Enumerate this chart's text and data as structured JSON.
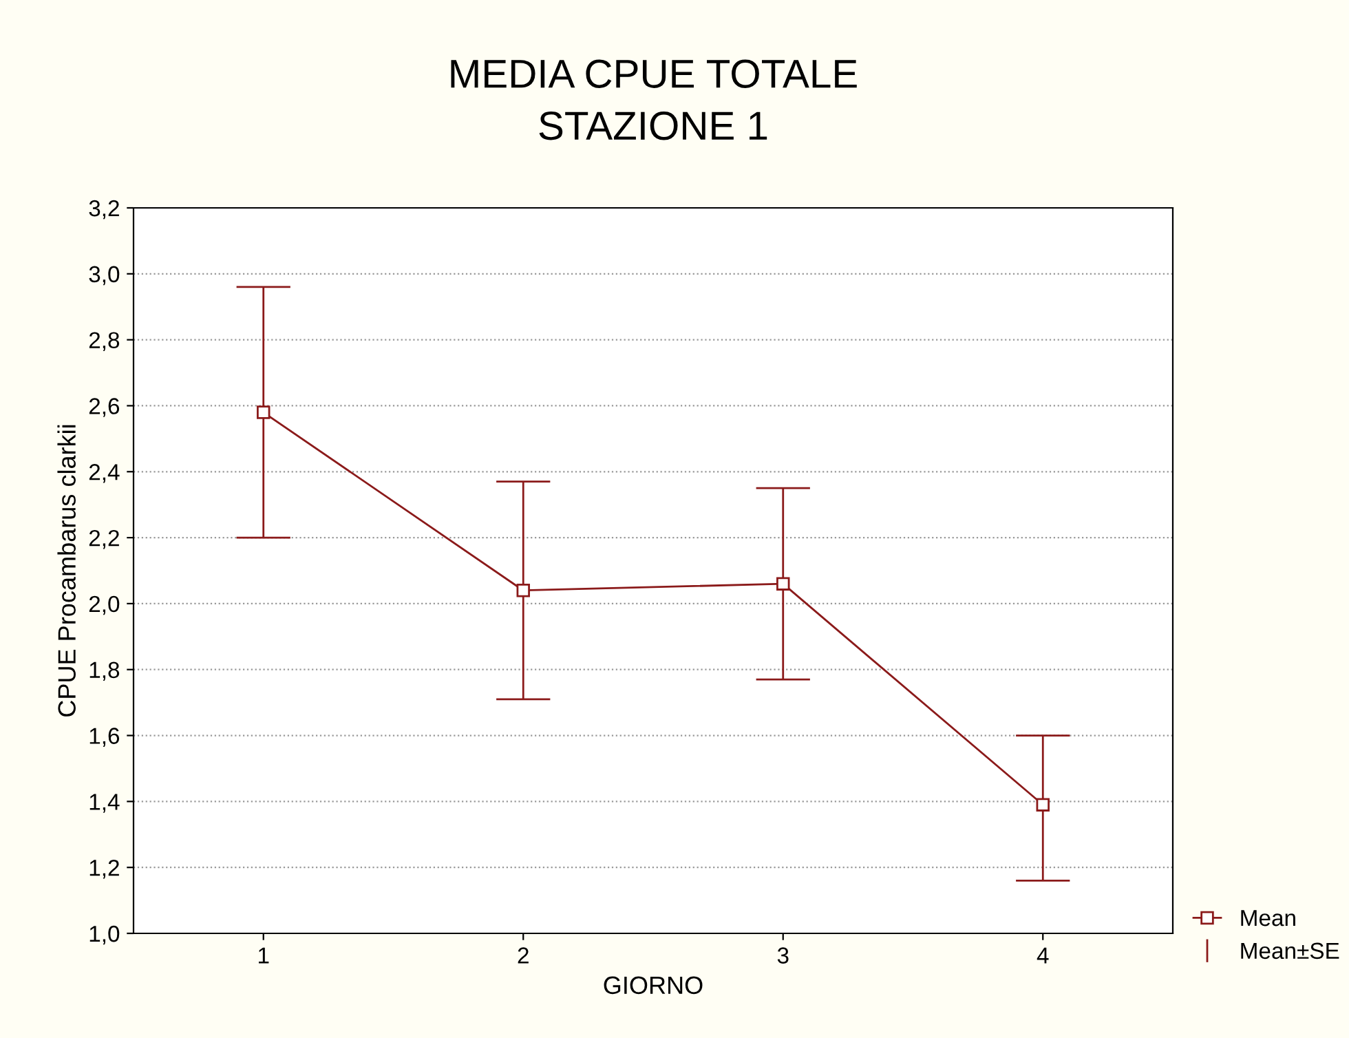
{
  "chart_data": {
    "type": "line",
    "title": "MEDIA CPUE TOTALE\nSTAZIONE 1",
    "xlabel": "GIORNO",
    "ylabel": "CPUE Procambarus clarkii",
    "categories": [
      "1",
      "2",
      "3",
      "4"
    ],
    "series": [
      {
        "name": "Mean",
        "color": "#8b1a1a",
        "values": [
          2.58,
          2.04,
          2.06,
          1.39
        ],
        "errors": [
          [
            2.2,
            2.96
          ],
          [
            1.71,
            2.37
          ],
          [
            1.77,
            2.35
          ],
          [
            1.16,
            1.6
          ]
        ]
      }
    ],
    "annotations": [
      "Mean±SE"
    ],
    "ylim": [
      1.0,
      3.2
    ],
    "yticks": [
      {
        "value": 1.0,
        "label": "1,0"
      },
      {
        "value": 1.2,
        "label": "1,2"
      },
      {
        "value": 1.4,
        "label": "1,4"
      },
      {
        "value": 1.6,
        "label": "1,6"
      },
      {
        "value": 1.8,
        "label": "1,8"
      },
      {
        "value": 2.0,
        "label": "2,0"
      },
      {
        "value": 2.2,
        "label": "2,2"
      },
      {
        "value": 2.4,
        "label": "2,4"
      },
      {
        "value": 2.6,
        "label": "2,6"
      },
      {
        "value": 2.8,
        "label": "2,8"
      },
      {
        "value": 3.0,
        "label": "3,0"
      },
      {
        "value": 3.2,
        "label": "3,2"
      }
    ],
    "grid": "y",
    "legend": "bottom right",
    "marker": "square",
    "line_style": "solid"
  }
}
